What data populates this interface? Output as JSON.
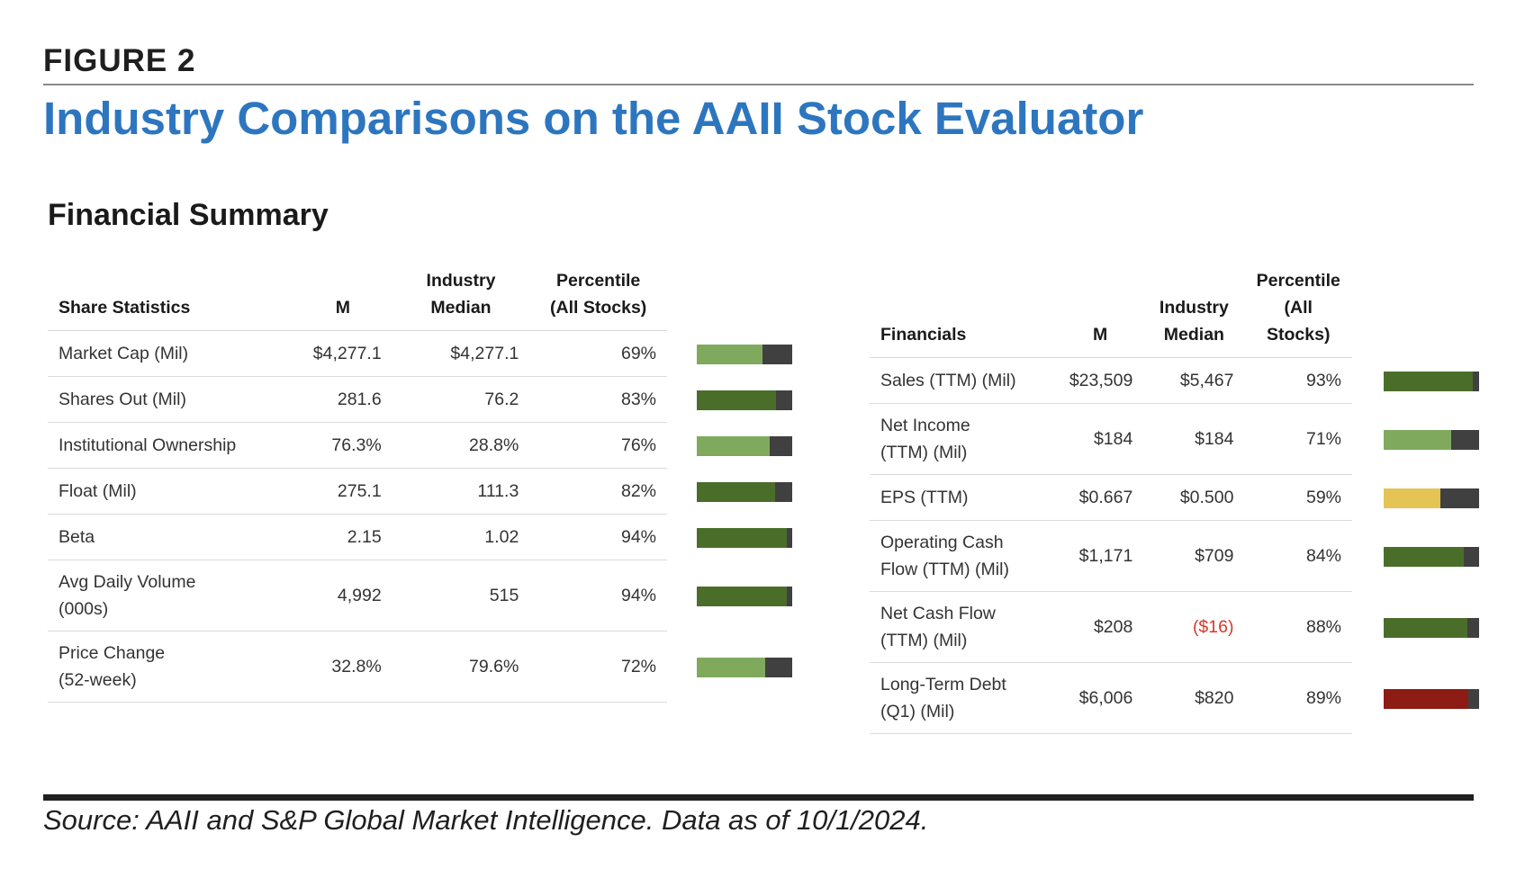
{
  "figure_label": "FIGURE 2",
  "title": "Industry Comparisons on the AAII Stock Evaluator",
  "section_title": "Financial Summary",
  "left_table": {
    "headers": [
      "Share Statistics",
      "M",
      "Industry\nMedian",
      "Percentile\n(All Stocks)"
    ],
    "rows": [
      {
        "label": "Market Cap (Mil)",
        "m": "$4,277.1",
        "median": "$4,277.1",
        "pct": "69%",
        "bar_pct": 0.69,
        "bar_color": "light"
      },
      {
        "label": "Shares Out (Mil)",
        "m": "281.6",
        "median": "76.2",
        "pct": "83%",
        "bar_pct": 0.83,
        "bar_color": "dark"
      },
      {
        "label": "Institutional Ownership",
        "m": "76.3%",
        "median": "28.8%",
        "pct": "76%",
        "bar_pct": 0.76,
        "bar_color": "light"
      },
      {
        "label": "Float (Mil)",
        "m": "275.1",
        "median": "111.3",
        "pct": "82%",
        "bar_pct": 0.82,
        "bar_color": "dark"
      },
      {
        "label": "Beta",
        "m": "2.15",
        "median": "1.02",
        "pct": "94%",
        "bar_pct": 0.94,
        "bar_color": "dark"
      },
      {
        "label": "Avg Daily Volume\n(000s)",
        "m": "4,992",
        "median": "515",
        "pct": "94%",
        "bar_pct": 0.94,
        "bar_color": "dark"
      },
      {
        "label": "Price Change\n(52-week)",
        "m": "32.8%",
        "median": "79.6%",
        "pct": "72%",
        "bar_pct": 0.72,
        "bar_color": "light"
      }
    ]
  },
  "right_table": {
    "headers": [
      "Financials",
      "M",
      "Industry\nMedian",
      "Percentile\n(All\nStocks)"
    ],
    "rows": [
      {
        "label": "Sales (TTM) (Mil)",
        "m": "$23,509",
        "median": "$5,467",
        "pct": "93%",
        "bar_pct": 0.93,
        "bar_color": "dark",
        "negative": false
      },
      {
        "label": "Net Income\n(TTM) (Mil)",
        "m": "$184",
        "median": "$184",
        "pct": "71%",
        "bar_pct": 0.71,
        "bar_color": "light",
        "negative": false
      },
      {
        "label": "EPS (TTM)",
        "m": "$0.667",
        "median": "$0.500",
        "pct": "59%",
        "bar_pct": 0.59,
        "bar_color": "yellow",
        "negative": false
      },
      {
        "label": "Operating Cash\nFlow (TTM) (Mil)",
        "m": "$1,171",
        "median": "$709",
        "pct": "84%",
        "bar_pct": 0.84,
        "bar_color": "dark",
        "negative": false
      },
      {
        "label": "Net Cash Flow\n(TTM) (Mil)",
        "m": "$208",
        "median": "($16)",
        "pct": "88%",
        "bar_pct": 0.88,
        "bar_color": "dark",
        "negative": true
      },
      {
        "label": "Long-Term Debt\n(Q1) (Mil)",
        "m": "$6,006",
        "median": "$820",
        "pct": "89%",
        "bar_pct": 0.89,
        "bar_color": "red",
        "negative": false
      }
    ]
  },
  "colors": {
    "title_blue": "#2d76bf",
    "bar_light_green": "#7faa5e",
    "bar_dark_green": "#4a6e2a",
    "bar_yellow": "#e4c454",
    "bar_red": "#8d1c14",
    "bar_track": "#404040",
    "negative_text": "#d43a2a"
  },
  "source": "Source: AAII and S&P Global Market Intelligence. Data as of 10/1/2024."
}
